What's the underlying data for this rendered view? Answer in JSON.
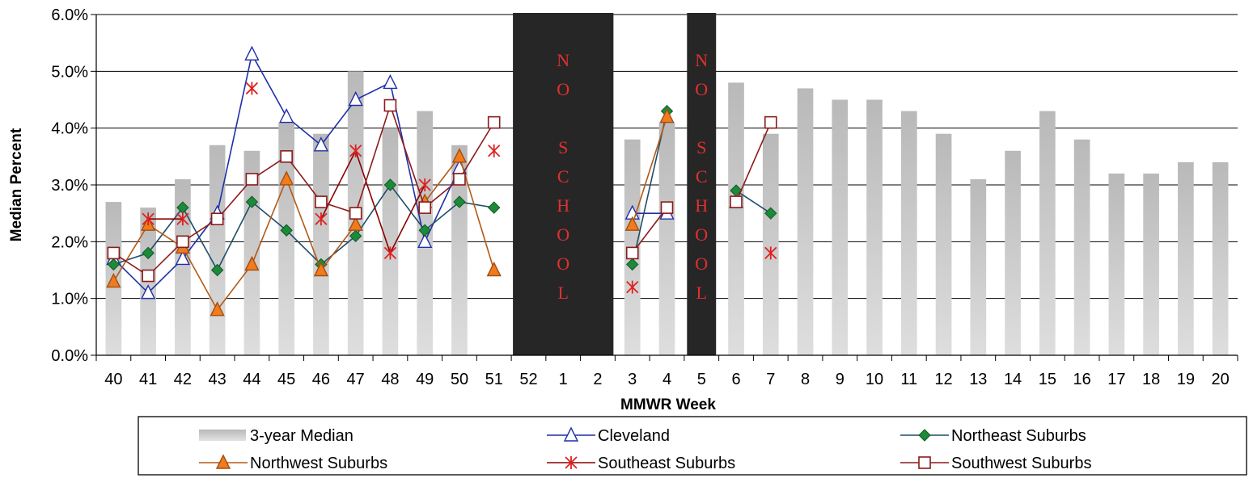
{
  "chart_data": {
    "type": "bar+line",
    "title": "",
    "xlabel": "MMWR Week",
    "ylabel": "Median Percent",
    "ylim": [
      0,
      6
    ],
    "y_ticks": [
      "0.0%",
      "1.0%",
      "2.0%",
      "3.0%",
      "4.0%",
      "5.0%",
      "6.0%"
    ],
    "grid": true,
    "legend_position": "bottom",
    "categories": [
      "40",
      "41",
      "42",
      "43",
      "44",
      "45",
      "46",
      "47",
      "48",
      "49",
      "50",
      "51",
      "52",
      "1",
      "2",
      "3",
      "4",
      "5",
      "6",
      "7",
      "8",
      "9",
      "10",
      "11",
      "12",
      "13",
      "14",
      "15",
      "16",
      "17",
      "18",
      "19",
      "20"
    ],
    "bars": {
      "name": "3-year Median",
      "color": "#c8c8c8",
      "values": [
        2.7,
        2.6,
        3.1,
        3.7,
        3.6,
        4.1,
        3.9,
        5.0,
        4.0,
        4.3,
        3.7,
        null,
        null,
        null,
        null,
        3.8,
        4.1,
        null,
        4.8,
        3.9,
        4.7,
        4.5,
        4.5,
        4.3,
        3.9,
        3.1,
        3.6,
        4.3,
        3.8,
        3.2,
        3.2,
        3.4,
        3.4
      ]
    },
    "series": [
      {
        "name": "Cleveland",
        "color": "#1f2fa8",
        "marker": "triangle-open",
        "values": [
          1.7,
          1.1,
          1.7,
          2.5,
          5.3,
          4.2,
          3.7,
          4.5,
          4.8,
          2.0,
          3.3,
          null,
          null,
          null,
          null,
          2.5,
          2.5,
          null,
          null,
          null,
          null,
          null,
          null,
          null,
          null,
          null,
          null,
          null,
          null,
          null,
          null,
          null,
          null
        ]
      },
      {
        "name": "Northeast Suburbs",
        "color": "#1d8a3a",
        "line_color": "#1f4e6b",
        "marker": "diamond",
        "values": [
          1.6,
          1.8,
          2.6,
          1.5,
          2.7,
          2.2,
          1.6,
          2.1,
          3.0,
          2.2,
          2.7,
          2.6,
          null,
          null,
          null,
          1.6,
          4.3,
          null,
          2.9,
          2.5,
          null,
          null,
          null,
          null,
          null,
          null,
          null,
          null,
          null,
          null,
          null,
          null,
          null
        ]
      },
      {
        "name": "Northwest Suburbs",
        "color": "#f07c1e",
        "line_color": "#b35a16",
        "marker": "triangle",
        "values": [
          1.3,
          2.3,
          1.9,
          0.8,
          1.6,
          3.1,
          1.5,
          2.3,
          null,
          2.7,
          3.5,
          1.5,
          null,
          null,
          null,
          2.3,
          4.2,
          null,
          2.7,
          null,
          null,
          null,
          null,
          null,
          null,
          null,
          null,
          null,
          null,
          null,
          null,
          null,
          null
        ]
      },
      {
        "name": "Southeast Suburbs",
        "color": "#e02020",
        "line_color": "#8b0000",
        "marker": "asterisk",
        "values": [
          null,
          2.4,
          2.4,
          null,
          4.7,
          null,
          2.4,
          3.6,
          1.8,
          3.0,
          null,
          3.6,
          null,
          null,
          null,
          1.2,
          null,
          null,
          null,
          1.8,
          null,
          null,
          null,
          null,
          null,
          null,
          null,
          null,
          null,
          null,
          null,
          null,
          null
        ]
      },
      {
        "name": "Southwest Suburbs",
        "color": "#8b1a1a",
        "marker": "square-open",
        "values": [
          1.8,
          1.4,
          2.0,
          2.4,
          3.1,
          3.5,
          2.7,
          2.5,
          4.4,
          2.6,
          3.1,
          4.1,
          null,
          null,
          null,
          1.8,
          2.6,
          null,
          2.7,
          4.1,
          null,
          null,
          null,
          null,
          null,
          null,
          null,
          null,
          null,
          null,
          null,
          null,
          null
        ]
      }
    ],
    "annotations": [
      {
        "text": "NO SCHOOL",
        "letters": [
          "N",
          "O",
          "",
          "S",
          "C",
          "H",
          "O",
          "O",
          "L"
        ],
        "span_categories": [
          "52",
          "2"
        ]
      },
      {
        "text": "NO SCHOOL",
        "letters": [
          "N",
          "O",
          "",
          "S",
          "C",
          "H",
          "O",
          "O",
          "L"
        ],
        "span_categories": [
          "5",
          "5"
        ]
      }
    ]
  }
}
